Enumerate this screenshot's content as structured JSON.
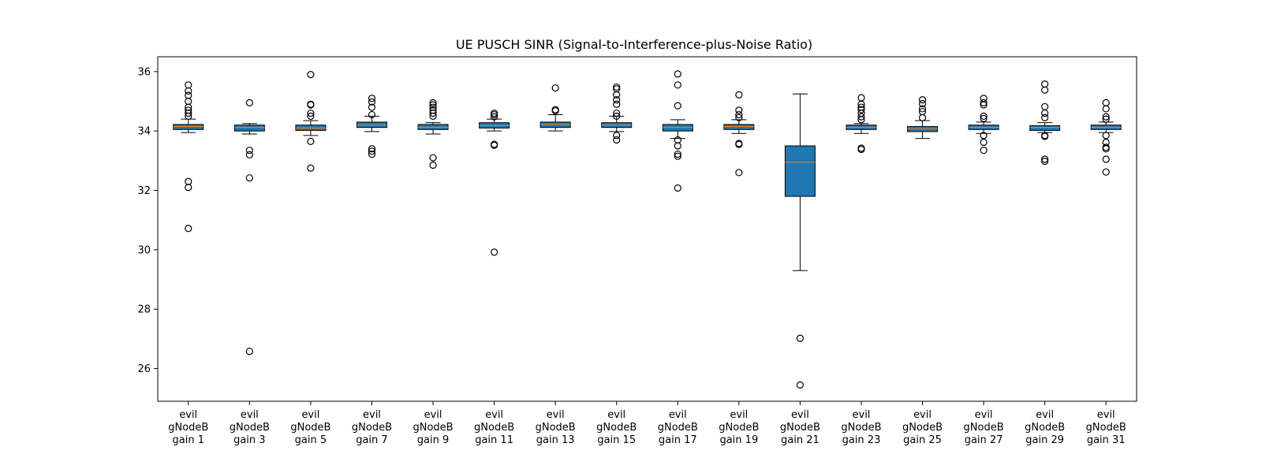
{
  "chart_data": {
    "type": "boxplot",
    "title": "UE PUSCH SINR (Signal-to-Interference-plus-Noise Ratio)",
    "xlabel": "",
    "ylabel": "",
    "ylim": [
      24.9,
      36.5
    ],
    "yticks": [
      26,
      28,
      30,
      32,
      34,
      36
    ],
    "grid": false,
    "box_color": "#1f77b4",
    "median_color": "#ff7f0e",
    "categories": [
      [
        "evil",
        "gNodeB",
        "gain 1"
      ],
      [
        "evil",
        "gNodeB",
        "gain 3"
      ],
      [
        "evil",
        "gNodeB",
        "gain 5"
      ],
      [
        "evil",
        "gNodeB",
        "gain 7"
      ],
      [
        "evil",
        "gNodeB",
        "gain 9"
      ],
      [
        "evil",
        "gNodeB",
        "gain 11"
      ],
      [
        "evil",
        "gNodeB",
        "gain 13"
      ],
      [
        "evil",
        "gNodeB",
        "gain 15"
      ],
      [
        "evil",
        "gNodeB",
        "gain 17"
      ],
      [
        "evil",
        "gNodeB",
        "gain 19"
      ],
      [
        "evil",
        "gNodeB",
        "gain 21"
      ],
      [
        "evil",
        "gNodeB",
        "gain 23"
      ],
      [
        "evil",
        "gNodeB",
        "gain 25"
      ],
      [
        "evil",
        "gNodeB",
        "gain 27"
      ],
      [
        "evil",
        "gNodeB",
        "gain 29"
      ],
      [
        "evil",
        "gNodeB",
        "gain 31"
      ]
    ],
    "boxes": [
      {
        "whislo": 33.95,
        "q1": 34.05,
        "med": 34.15,
        "q3": 34.22,
        "whishi": 34.4,
        "fliers": [
          35.55,
          35.35,
          35.2,
          35.0,
          34.8,
          34.7,
          34.6,
          34.5,
          32.3,
          32.1,
          30.72
        ]
      },
      {
        "whislo": 33.9,
        "q1": 34.0,
        "med": 34.12,
        "q3": 34.2,
        "whishi": 34.25,
        "fliers": [
          34.95,
          33.35,
          33.2,
          32.42,
          26.58
        ]
      },
      {
        "whislo": 33.85,
        "q1": 34.02,
        "med": 34.1,
        "q3": 34.2,
        "whishi": 34.35,
        "fliers": [
          35.9,
          34.9,
          34.88,
          34.6,
          34.5,
          33.65,
          32.75
        ]
      },
      {
        "whislo": 33.98,
        "q1": 34.12,
        "med": 34.2,
        "q3": 34.3,
        "whishi": 34.5,
        "fliers": [
          35.1,
          34.98,
          34.8,
          34.55,
          33.4,
          33.32,
          33.22
        ]
      },
      {
        "whislo": 33.9,
        "q1": 34.05,
        "med": 34.12,
        "q3": 34.22,
        "whishi": 34.28,
        "fliers": [
          34.95,
          34.88,
          34.8,
          34.7,
          34.6,
          34.5,
          33.1,
          32.85
        ]
      },
      {
        "whislo": 34.0,
        "q1": 34.1,
        "med": 34.18,
        "q3": 34.28,
        "whishi": 34.4,
        "fliers": [
          34.6,
          34.55,
          34.48,
          33.55,
          33.52,
          29.92
        ]
      },
      {
        "whislo": 34.0,
        "q1": 34.12,
        "med": 34.22,
        "q3": 34.3,
        "whishi": 34.55,
        "fliers": [
          35.45,
          34.72,
          34.68
        ]
      },
      {
        "whislo": 33.98,
        "q1": 34.12,
        "med": 34.2,
        "q3": 34.28,
        "whishi": 34.5,
        "fliers": [
          35.48,
          35.42,
          35.22,
          35.05,
          34.9,
          34.6,
          34.5,
          33.85,
          33.7
        ]
      },
      {
        "whislo": 33.75,
        "q1": 34.0,
        "med": 34.12,
        "q3": 34.22,
        "whishi": 34.38,
        "fliers": [
          35.92,
          35.55,
          34.85,
          33.7,
          33.5,
          33.22,
          33.15,
          32.08
        ]
      },
      {
        "whislo": 33.92,
        "q1": 34.05,
        "med": 34.15,
        "q3": 34.22,
        "whishi": 34.38,
        "fliers": [
          35.22,
          34.7,
          34.55,
          34.45,
          33.58,
          33.55,
          32.6
        ]
      },
      {
        "whislo": 29.3,
        "q1": 31.8,
        "med": 32.95,
        "q3": 33.5,
        "whishi": 35.25,
        "fliers": [
          27.02,
          25.45
        ]
      },
      {
        "whislo": 33.92,
        "q1": 34.05,
        "med": 34.12,
        "q3": 34.2,
        "whishi": 34.25,
        "fliers": [
          35.12,
          34.9,
          34.8,
          34.72,
          34.6,
          34.48,
          34.38,
          33.42,
          33.38
        ]
      },
      {
        "whislo": 33.75,
        "q1": 33.98,
        "med": 34.08,
        "q3": 34.15,
        "whishi": 34.35,
        "fliers": [
          35.05,
          34.92,
          34.75,
          34.65,
          34.45
        ]
      },
      {
        "whislo": 33.92,
        "q1": 34.05,
        "med": 34.12,
        "q3": 34.2,
        "whishi": 34.3,
        "fliers": [
          35.1,
          34.95,
          34.88,
          34.5,
          34.42,
          33.85,
          33.62,
          33.35
        ]
      },
      {
        "whislo": 33.95,
        "q1": 34.02,
        "med": 34.12,
        "q3": 34.18,
        "whishi": 34.28,
        "fliers": [
          35.58,
          35.38,
          34.82,
          34.6,
          34.45,
          33.85,
          33.82,
          33.05,
          32.98
        ]
      },
      {
        "whislo": 33.95,
        "q1": 34.05,
        "med": 34.12,
        "q3": 34.2,
        "whishi": 34.3,
        "fliers": [
          34.95,
          34.75,
          34.48,
          34.4,
          33.85,
          33.62,
          33.45,
          33.4,
          33.05,
          32.62
        ]
      }
    ]
  }
}
